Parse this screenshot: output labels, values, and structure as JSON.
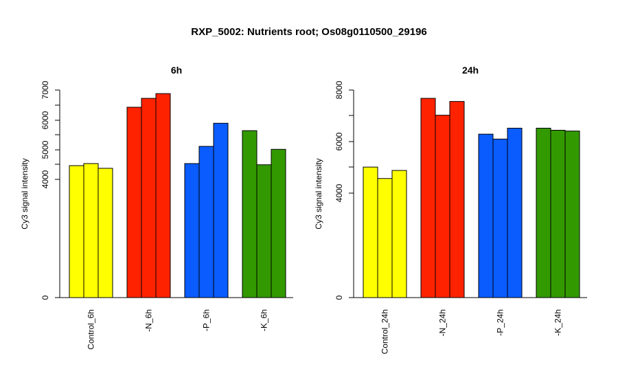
{
  "title": "RXP_5002: Nutrients root; Os08g0110500_29196",
  "colors": {
    "Control": "#ffff00",
    "N": "#ff2200",
    "P": "#0a5cff",
    "K": "#339900"
  },
  "chart_data": [
    {
      "type": "bar",
      "title": "6h",
      "ylabel": "Cy3 signal intensity",
      "ylim": [
        0,
        7000
      ],
      "yticks": [
        "0",
        "4000",
        "5000",
        "6000",
        "7000"
      ],
      "categories": [
        "Control_6h",
        "-N_6h",
        "-P_6h",
        "-K_6h"
      ],
      "series": [
        {
          "values": [
            4450,
            6420,
            4520,
            5630
          ]
        },
        {
          "values": [
            4520,
            6720,
            5100,
            4480
          ]
        },
        {
          "values": [
            4360,
            6880,
            5880,
            5000
          ]
        }
      ]
    },
    {
      "type": "bar",
      "title": "24h",
      "ylabel": "Cy3 signal intensity",
      "ylim": [
        0,
        8000
      ],
      "yticks": [
        "0",
        "4000",
        "6000",
        "8000"
      ],
      "categories": [
        "Control_24h",
        "-N_24h",
        "-P_24h",
        "-K_24h"
      ],
      "series": [
        {
          "values": [
            5030,
            7680,
            6300,
            6530
          ]
        },
        {
          "values": [
            4590,
            7030,
            6110,
            6450
          ]
        },
        {
          "values": [
            4900,
            7560,
            6530,
            6420
          ]
        }
      ]
    }
  ]
}
